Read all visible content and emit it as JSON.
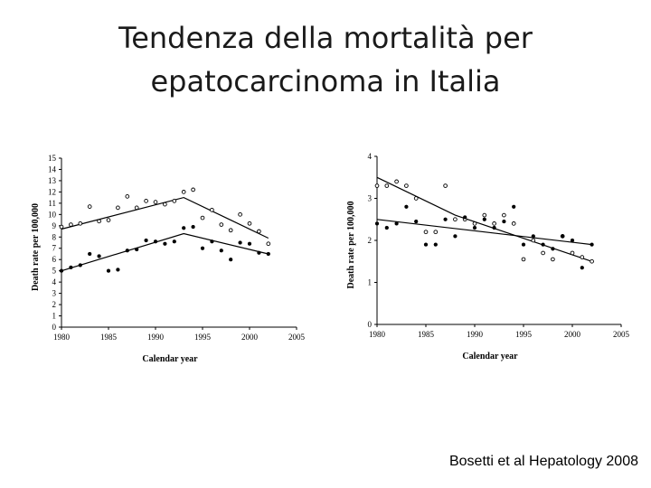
{
  "title_lines": [
    "Tendenza della mortalità per",
    "epatocarcinoma in Italia"
  ],
  "citation": "Bosetti et al Hepatology 2008",
  "chart_data": [
    {
      "type": "scatter",
      "xlabel": "Calendar year",
      "ylabel": "Death rate per 100,000",
      "xlim": [
        1980,
        2005
      ],
      "ylim": [
        0,
        15
      ],
      "xticks": [
        1980,
        1985,
        1990,
        1995,
        2000,
        2005
      ],
      "yticks": [
        0,
        1,
        2,
        3,
        4,
        5,
        6,
        7,
        8,
        9,
        10,
        11,
        12,
        13,
        14,
        15
      ],
      "series": [
        {
          "marker": "open-circle",
          "points": [
            [
              1980,
              8.9
            ],
            [
              1981,
              9.1
            ],
            [
              1982,
              9.2
            ],
            [
              1983,
              10.7
            ],
            [
              1984,
              9.4
            ],
            [
              1985,
              9.5
            ],
            [
              1986,
              10.6
            ],
            [
              1987,
              11.6
            ],
            [
              1988,
              10.6
            ],
            [
              1989,
              11.2
            ],
            [
              1990,
              11.1
            ],
            [
              1991,
              10.9
            ],
            [
              1992,
              11.2
            ],
            [
              1993,
              12.0
            ],
            [
              1994,
              12.2
            ],
            [
              1995,
              9.7
            ],
            [
              1996,
              10.4
            ],
            [
              1997,
              9.1
            ],
            [
              1998,
              8.6
            ],
            [
              1999,
              10.0
            ],
            [
              2000,
              9.2
            ],
            [
              2001,
              8.5
            ],
            [
              2002,
              7.4
            ]
          ],
          "trend": [
            [
              1980,
              8.7
            ],
            [
              1993,
              11.5
            ],
            [
              2002,
              7.9
            ]
          ]
        },
        {
          "marker": "filled-circle",
          "points": [
            [
              1980,
              5.0
            ],
            [
              1981,
              5.3
            ],
            [
              1982,
              5.5
            ],
            [
              1983,
              6.5
            ],
            [
              1984,
              6.3
            ],
            [
              1985,
              5.0
            ],
            [
              1986,
              5.1
            ],
            [
              1987,
              6.8
            ],
            [
              1988,
              6.9
            ],
            [
              1989,
              7.7
            ],
            [
              1990,
              7.6
            ],
            [
              1991,
              7.4
            ],
            [
              1992,
              7.6
            ],
            [
              1993,
              8.8
            ],
            [
              1994,
              8.9
            ],
            [
              1995,
              7.0
            ],
            [
              1996,
              7.6
            ],
            [
              1997,
              6.8
            ],
            [
              1998,
              6.0
            ],
            [
              1999,
              7.5
            ],
            [
              2000,
              7.4
            ],
            [
              2001,
              6.6
            ],
            [
              2002,
              6.5
            ]
          ],
          "trend": [
            [
              1980,
              5.0
            ],
            [
              1993,
              8.3
            ],
            [
              2002,
              6.5
            ]
          ]
        }
      ]
    },
    {
      "type": "scatter",
      "xlabel": "Calendar year",
      "ylabel": "Death rate per 100,000",
      "xlim": [
        1980,
        2005
      ],
      "ylim": [
        0,
        4
      ],
      "xticks": [
        1980,
        1985,
        1990,
        1995,
        2000,
        2005
      ],
      "yticks": [
        0,
        1,
        2,
        3,
        4
      ],
      "series": [
        {
          "marker": "open-circle",
          "points": [
            [
              1980,
              3.3
            ],
            [
              1981,
              3.3
            ],
            [
              1982,
              3.4
            ],
            [
              1983,
              3.3
            ],
            [
              1984,
              3.0
            ],
            [
              1985,
              2.2
            ],
            [
              1986,
              2.2
            ],
            [
              1987,
              3.3
            ],
            [
              1988,
              2.5
            ],
            [
              1989,
              2.5
            ],
            [
              1990,
              2.4
            ],
            [
              1991,
              2.6
            ],
            [
              1992,
              2.4
            ],
            [
              1993,
              2.6
            ],
            [
              1994,
              2.4
            ],
            [
              1995,
              1.55
            ],
            [
              1996,
              2.0
            ],
            [
              1997,
              1.7
            ],
            [
              1998,
              1.55
            ],
            [
              1999,
              2.1
            ],
            [
              2000,
              1.7
            ],
            [
              2001,
              1.6
            ],
            [
              2002,
              1.5
            ]
          ],
          "trend": [
            [
              1980,
              3.5
            ],
            [
              1988,
              2.6
            ],
            [
              2002,
              1.5
            ]
          ]
        },
        {
          "marker": "filled-circle",
          "points": [
            [
              1980,
              2.4
            ],
            [
              1981,
              2.3
            ],
            [
              1982,
              2.4
            ],
            [
              1983,
              2.8
            ],
            [
              1984,
              2.45
            ],
            [
              1985,
              1.9
            ],
            [
              1986,
              1.9
            ],
            [
              1987,
              2.5
            ],
            [
              1988,
              2.1
            ],
            [
              1989,
              2.55
            ],
            [
              1990,
              2.3
            ],
            [
              1991,
              2.5
            ],
            [
              1992,
              2.3
            ],
            [
              1993,
              2.45
            ],
            [
              1994,
              2.8
            ],
            [
              1995,
              1.9
            ],
            [
              1996,
              2.1
            ],
            [
              1997,
              1.9
            ],
            [
              1998,
              1.8
            ],
            [
              1999,
              2.1
            ],
            [
              2000,
              2.0
            ],
            [
              2001,
              1.35
            ],
            [
              2002,
              1.9
            ]
          ],
          "trend": [
            [
              1980,
              2.5
            ],
            [
              2002,
              1.9
            ]
          ]
        }
      ]
    }
  ]
}
